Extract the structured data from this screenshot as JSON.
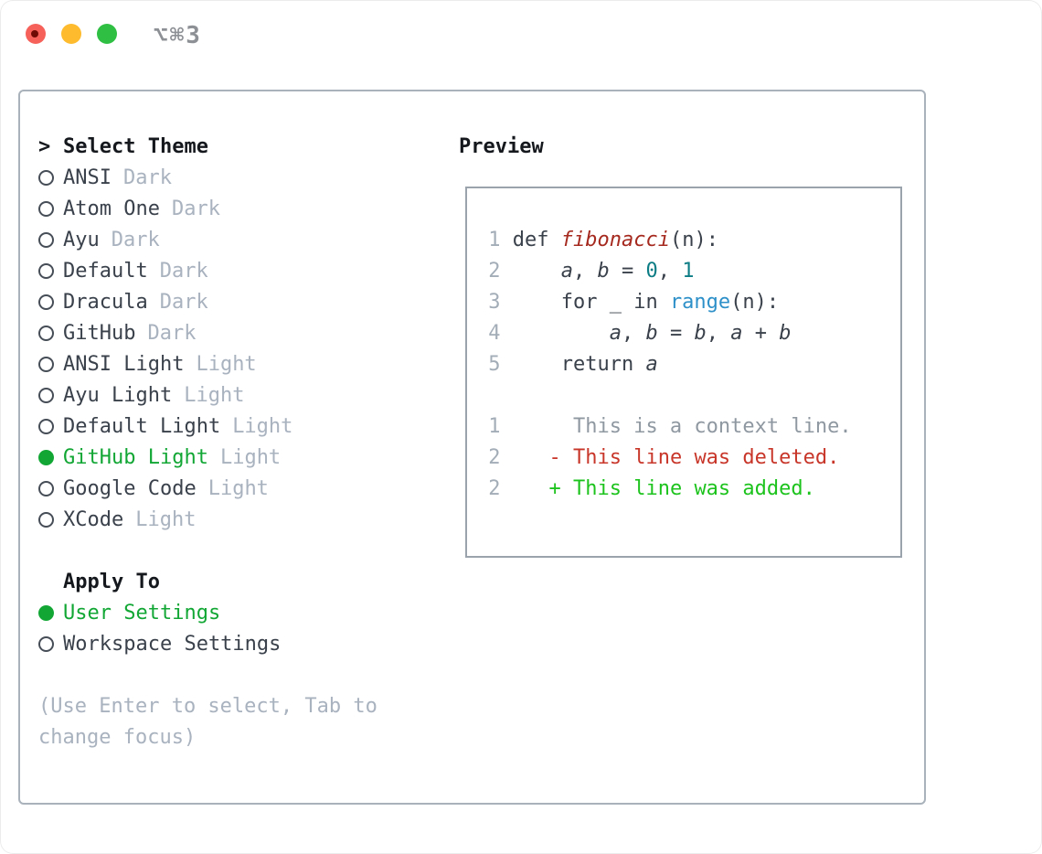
{
  "window": {
    "title": "⌥⌘3"
  },
  "theme_panel": {
    "prompt": ">",
    "title": "Select Theme",
    "items": [
      {
        "name": "ANSI",
        "tag": "Dark",
        "selected": false
      },
      {
        "name": "Atom One",
        "tag": "Dark",
        "selected": false
      },
      {
        "name": "Ayu",
        "tag": "Dark",
        "selected": false
      },
      {
        "name": "Default",
        "tag": "Dark",
        "selected": false
      },
      {
        "name": "Dracula",
        "tag": "Dark",
        "selected": false
      },
      {
        "name": "GitHub",
        "tag": "Dark",
        "selected": false
      },
      {
        "name": "ANSI Light",
        "tag": "Light",
        "selected": false
      },
      {
        "name": "Ayu Light",
        "tag": "Light",
        "selected": false
      },
      {
        "name": "Default Light",
        "tag": "Light",
        "selected": false
      },
      {
        "name": "GitHub Light",
        "tag": "Light",
        "selected": true
      },
      {
        "name": "Google Code",
        "tag": "Light",
        "selected": false
      },
      {
        "name": "XCode",
        "tag": "Light",
        "selected": false
      }
    ],
    "apply_to": {
      "title": "Apply To",
      "options": [
        {
          "name": "User Settings",
          "selected": true
        },
        {
          "name": "Workspace Settings",
          "selected": false
        }
      ]
    },
    "help_lines": [
      "(Use Enter to select, Tab to",
      "change focus)"
    ]
  },
  "preview": {
    "title": "Preview",
    "code_lines": [
      [
        [
          "ln",
          " 1 "
        ],
        [
          "t",
          "def "
        ],
        [
          "fn",
          "fibonacci"
        ],
        [
          "t",
          "(n):"
        ]
      ],
      [
        [
          "ln",
          " 2 "
        ],
        [
          "t",
          "    "
        ],
        [
          "v",
          "a"
        ],
        [
          "t",
          ", "
        ],
        [
          "v",
          "b"
        ],
        [
          "t",
          " = "
        ],
        [
          "n",
          "0"
        ],
        [
          "t",
          ", "
        ],
        [
          "n",
          "1"
        ]
      ],
      [
        [
          "ln",
          " 3 "
        ],
        [
          "t",
          "    for _ in "
        ],
        [
          "b",
          "range"
        ],
        [
          "t",
          "(n):"
        ]
      ],
      [
        [
          "ln",
          " 4 "
        ],
        [
          "t",
          "        "
        ],
        [
          "v",
          "a"
        ],
        [
          "t",
          ", "
        ],
        [
          "v",
          "b"
        ],
        [
          "t",
          " = "
        ],
        [
          "v",
          "b"
        ],
        [
          "t",
          ", "
        ],
        [
          "v",
          "a"
        ],
        [
          "t",
          " + "
        ],
        [
          "v",
          "b"
        ]
      ],
      [
        [
          "ln",
          " 5 "
        ],
        [
          "t",
          "    return "
        ],
        [
          "v",
          "a"
        ]
      ],
      [],
      [
        [
          "ln",
          " 1 "
        ],
        [
          "c",
          "     This is a context line."
        ]
      ],
      [
        [
          "ln",
          " 2 "
        ],
        [
          "t",
          "   "
        ],
        [
          "d",
          "- This line was deleted."
        ]
      ],
      [
        [
          "ln",
          " 2 "
        ],
        [
          "t",
          "   "
        ],
        [
          "a",
          "+ This line was added."
        ]
      ]
    ]
  },
  "colors": {
    "text_dark": "#3a414b",
    "muted_gray": "#a9b2bf",
    "line_number_gray": "#a3adb8",
    "context_gray": "#8f98a1",
    "selected_green": "#12a735",
    "added_green": "#1dc31d",
    "deleted_red": "#c8362a",
    "function_red": "#a5291e",
    "number_teal": "#0d7d85",
    "builtin_blue": "#2e90c8",
    "traffic_red": "#f6615a",
    "traffic_yellow": "#fdbb2d",
    "traffic_green": "#2fc043"
  }
}
